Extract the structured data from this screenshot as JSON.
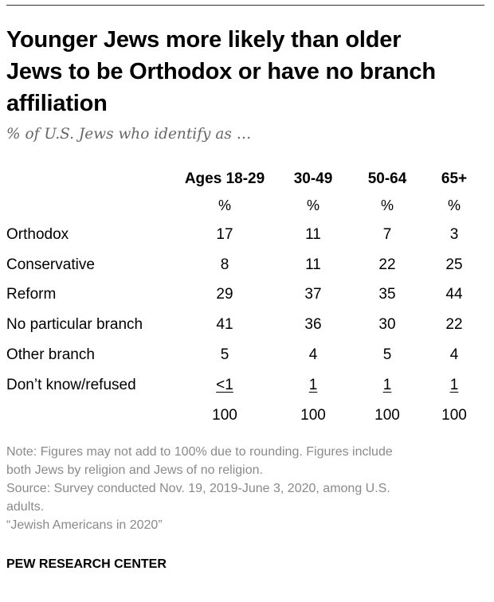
{
  "chart_data": {
    "type": "table",
    "title_lines": [
      "Younger Jews more likely than older",
      "Jews to be Orthodox or have no branch",
      "affiliation"
    ],
    "subtitle": "% of U.S. Jews who identify as …",
    "columns": [
      "Ages 18-29",
      "30-49",
      "50-64",
      "65+"
    ],
    "unit_row": [
      "%",
      "%",
      "%",
      "%"
    ],
    "rows": [
      {
        "label": "Orthodox",
        "values": [
          "17",
          "11",
          "7",
          "3"
        ]
      },
      {
        "label": "Conservative",
        "values": [
          "8",
          "11",
          "22",
          "25"
        ]
      },
      {
        "label": "Reform",
        "values": [
          "29",
          "37",
          "35",
          "44"
        ]
      },
      {
        "label": "No particular branch",
        "values": [
          "41",
          "36",
          "30",
          "22"
        ]
      },
      {
        "label": "Other branch",
        "values": [
          "5",
          "4",
          "5",
          "4"
        ]
      },
      {
        "label": "Don’t know/refused",
        "values": [
          "<1",
          "1",
          "1",
          "1"
        ]
      }
    ],
    "totals": [
      "100",
      "100",
      "100",
      "100"
    ]
  },
  "notes": [
    "Note: Figures may not add to 100% due to rounding. Figures include",
    "both Jews by religion and Jews of no religion.",
    "Source: Survey conducted Nov. 19, 2019-June 3, 2020, among U.S.",
    "adults.",
    "“Jewish Americans in 2020”"
  ],
  "brand": "PEW RESEARCH CENTER"
}
